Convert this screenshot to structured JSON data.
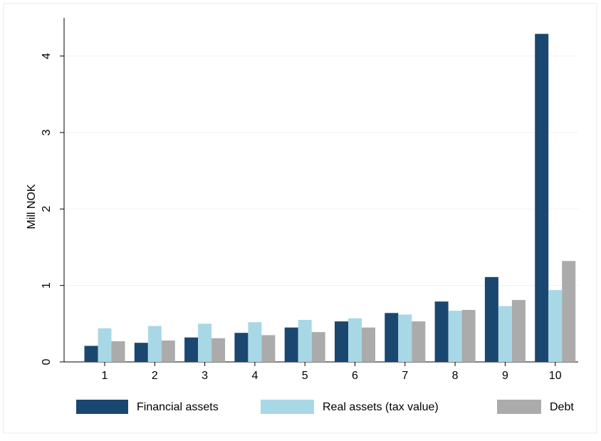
{
  "chart_data": {
    "type": "bar",
    "y_label": "Mill NOK",
    "categories": [
      "1",
      "2",
      "3",
      "4",
      "5",
      "6",
      "7",
      "8",
      "9",
      "10"
    ],
    "series": [
      {
        "name": "Financial assets",
        "color": "#1a476f",
        "values": [
          0.21,
          0.25,
          0.32,
          0.38,
          0.45,
          0.53,
          0.64,
          0.79,
          1.11,
          4.29
        ]
      },
      {
        "name": "Real assets (tax value)",
        "color": "#a8d8e6",
        "values": [
          0.44,
          0.47,
          0.5,
          0.52,
          0.55,
          0.57,
          0.62,
          0.67,
          0.73,
          0.94
        ]
      },
      {
        "name": "Debt",
        "color": "#ababab",
        "values": [
          0.27,
          0.28,
          0.31,
          0.35,
          0.39,
          0.45,
          0.53,
          0.68,
          0.81,
          1.32
        ]
      }
    ],
    "ylim": [
      0,
      4.5
    ],
    "yticks": [
      0,
      1,
      2,
      3,
      4
    ],
    "grid": true,
    "legend": "bottom"
  }
}
